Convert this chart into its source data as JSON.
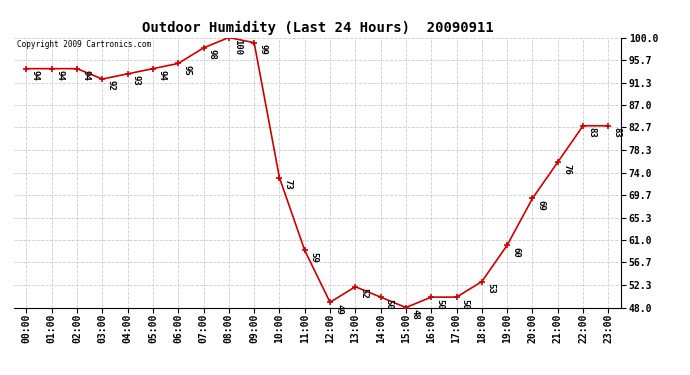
{
  "title": "Outdoor Humidity (Last 24 Hours)  20090911",
  "copyright": "Copyright 2009 Cartronics.com",
  "hours": [
    0,
    1,
    2,
    3,
    4,
    5,
    6,
    7,
    8,
    9,
    10,
    11,
    12,
    13,
    14,
    15,
    16,
    17,
    18,
    19,
    20,
    21,
    22,
    23
  ],
  "x_labels": [
    "00:00",
    "01:00",
    "02:00",
    "03:00",
    "04:00",
    "05:00",
    "06:00",
    "07:00",
    "08:00",
    "09:00",
    "10:00",
    "11:00",
    "12:00",
    "13:00",
    "14:00",
    "15:00",
    "16:00",
    "17:00",
    "18:00",
    "19:00",
    "20:00",
    "21:00",
    "22:00",
    "23:00"
  ],
  "values": [
    94,
    94,
    94,
    92,
    93,
    94,
    95,
    98,
    100,
    99,
    73,
    59,
    49,
    52,
    50,
    48,
    50,
    50,
    53,
    60,
    69,
    76,
    83,
    83
  ],
  "line_color": "#cc0000",
  "marker_color": "#cc0000",
  "bg_color": "#ffffff",
  "grid_color": "#cccccc",
  "ylim": [
    48.0,
    100.0
  ],
  "yticks": [
    48.0,
    52.3,
    56.7,
    61.0,
    65.3,
    69.7,
    74.0,
    78.3,
    82.7,
    87.0,
    91.3,
    95.7,
    100.0
  ],
  "title_fontsize": 10,
  "label_fontsize": 7,
  "annotation_fontsize": 6.5,
  "copyright_fontsize": 5.5
}
